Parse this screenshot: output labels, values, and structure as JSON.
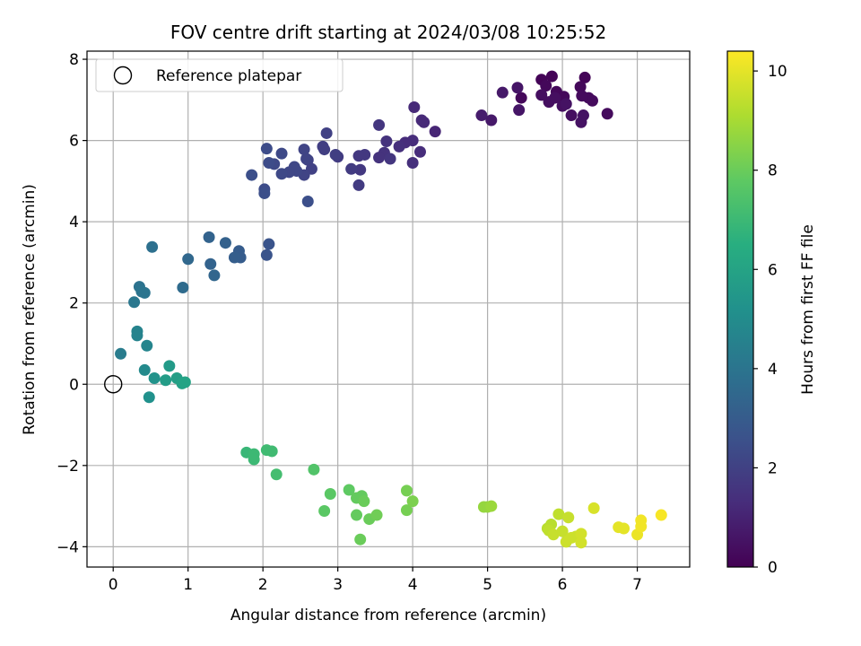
{
  "chart_data": {
    "type": "scatter",
    "title": "FOV centre drift starting at 2024/03/08 10:25:52",
    "xlabel": "Angular distance from reference (arcmin)",
    "ylabel": "Rotation from reference (arcmin)",
    "xlim": [
      -0.35,
      7.7
    ],
    "ylim": [
      -4.5,
      8.2
    ],
    "xticks": [
      0,
      1,
      2,
      3,
      4,
      5,
      6,
      7
    ],
    "yticks": [
      -4,
      -2,
      0,
      2,
      4,
      6,
      8
    ],
    "grid": true,
    "legend": {
      "placement": "top-left",
      "entries": [
        "Reference platepar"
      ]
    },
    "reference_point": {
      "x": 0,
      "y": 0
    },
    "colorbar": {
      "label": "Hours from first FF file",
      "range": [
        0,
        10.4
      ],
      "ticks": [
        0,
        2,
        4,
        6,
        8,
        10
      ],
      "colormap": "viridis"
    },
    "points": [
      {
        "x": 5.72,
        "y": 7.5,
        "h": 0.1
      },
      {
        "x": 5.86,
        "y": 7.58,
        "h": 0.1
      },
      {
        "x": 6.3,
        "y": 7.55,
        "h": 0.1
      },
      {
        "x": 5.45,
        "y": 7.05,
        "h": 0.2
      },
      {
        "x": 5.78,
        "y": 7.35,
        "h": 0.2
      },
      {
        "x": 5.92,
        "y": 7.2,
        "h": 0.2
      },
      {
        "x": 6.02,
        "y": 7.08,
        "h": 0.2
      },
      {
        "x": 6.24,
        "y": 7.32,
        "h": 0.2
      },
      {
        "x": 6.6,
        "y": 6.66,
        "h": 0.3
      },
      {
        "x": 6.35,
        "y": 7.05,
        "h": 0.3
      },
      {
        "x": 6.4,
        "y": 6.98,
        "h": 0.3
      },
      {
        "x": 6.26,
        "y": 7.1,
        "h": 0.3
      },
      {
        "x": 5.72,
        "y": 7.12,
        "h": 0.4
      },
      {
        "x": 5.82,
        "y": 6.95,
        "h": 0.4
      },
      {
        "x": 5.9,
        "y": 7.05,
        "h": 0.4
      },
      {
        "x": 6.0,
        "y": 6.85,
        "h": 0.4
      },
      {
        "x": 6.12,
        "y": 6.62,
        "h": 0.4
      },
      {
        "x": 6.25,
        "y": 6.45,
        "h": 0.5
      },
      {
        "x": 6.28,
        "y": 6.62,
        "h": 0.5
      },
      {
        "x": 6.05,
        "y": 6.9,
        "h": 0.5
      },
      {
        "x": 5.42,
        "y": 6.75,
        "h": 0.6
      },
      {
        "x": 5.4,
        "y": 7.3,
        "h": 0.6
      },
      {
        "x": 5.2,
        "y": 7.18,
        "h": 0.7
      },
      {
        "x": 5.05,
        "y": 6.5,
        "h": 0.7
      },
      {
        "x": 4.92,
        "y": 6.62,
        "h": 0.8
      },
      {
        "x": 4.3,
        "y": 6.22,
        "h": 1.1
      },
      {
        "x": 4.12,
        "y": 6.5,
        "h": 1.2
      },
      {
        "x": 4.15,
        "y": 6.45,
        "h": 1.2
      },
      {
        "x": 4.02,
        "y": 6.82,
        "h": 1.2
      },
      {
        "x": 4.0,
        "y": 6.0,
        "h": 1.3
      },
      {
        "x": 3.9,
        "y": 5.95,
        "h": 1.3
      },
      {
        "x": 4.1,
        "y": 5.72,
        "h": 1.3
      },
      {
        "x": 4.0,
        "y": 5.45,
        "h": 1.4
      },
      {
        "x": 3.82,
        "y": 5.85,
        "h": 1.4
      },
      {
        "x": 3.65,
        "y": 5.98,
        "h": 1.5
      },
      {
        "x": 3.62,
        "y": 5.7,
        "h": 1.5
      },
      {
        "x": 3.55,
        "y": 5.58,
        "h": 1.5
      },
      {
        "x": 3.7,
        "y": 5.55,
        "h": 1.6
      },
      {
        "x": 3.55,
        "y": 6.38,
        "h": 1.6
      },
      {
        "x": 3.36,
        "y": 5.65,
        "h": 1.7
      },
      {
        "x": 3.28,
        "y": 5.62,
        "h": 1.7
      },
      {
        "x": 3.3,
        "y": 5.28,
        "h": 1.7
      },
      {
        "x": 3.18,
        "y": 5.3,
        "h": 1.8
      },
      {
        "x": 3.28,
        "y": 4.9,
        "h": 1.8
      },
      {
        "x": 3.0,
        "y": 5.6,
        "h": 1.8
      },
      {
        "x": 2.97,
        "y": 5.65,
        "h": 1.9
      },
      {
        "x": 2.82,
        "y": 5.78,
        "h": 1.9
      },
      {
        "x": 2.8,
        "y": 5.85,
        "h": 1.9
      },
      {
        "x": 2.85,
        "y": 6.18,
        "h": 2.0
      },
      {
        "x": 2.6,
        "y": 5.52,
        "h": 2.0
      },
      {
        "x": 2.65,
        "y": 5.3,
        "h": 2.0
      },
      {
        "x": 2.55,
        "y": 5.78,
        "h": 2.1
      },
      {
        "x": 2.58,
        "y": 5.55,
        "h": 2.1
      },
      {
        "x": 2.55,
        "y": 5.15,
        "h": 2.1
      },
      {
        "x": 2.45,
        "y": 5.25,
        "h": 2.2
      },
      {
        "x": 2.42,
        "y": 5.35,
        "h": 2.2
      },
      {
        "x": 2.35,
        "y": 5.22,
        "h": 2.2
      },
      {
        "x": 2.25,
        "y": 5.68,
        "h": 2.3
      },
      {
        "x": 2.25,
        "y": 5.18,
        "h": 2.3
      },
      {
        "x": 2.15,
        "y": 5.42,
        "h": 2.3
      },
      {
        "x": 2.08,
        "y": 5.45,
        "h": 2.4
      },
      {
        "x": 2.05,
        "y": 5.8,
        "h": 2.4
      },
      {
        "x": 2.02,
        "y": 4.8,
        "h": 2.4
      },
      {
        "x": 2.02,
        "y": 4.7,
        "h": 2.5
      },
      {
        "x": 1.85,
        "y": 5.15,
        "h": 2.5
      },
      {
        "x": 2.6,
        "y": 4.5,
        "h": 2.5
      },
      {
        "x": 2.08,
        "y": 3.45,
        "h": 2.7
      },
      {
        "x": 2.05,
        "y": 3.18,
        "h": 2.7
      },
      {
        "x": 1.68,
        "y": 3.28,
        "h": 3.0
      },
      {
        "x": 1.7,
        "y": 3.12,
        "h": 3.0
      },
      {
        "x": 1.62,
        "y": 3.12,
        "h": 3.1
      },
      {
        "x": 1.5,
        "y": 3.48,
        "h": 3.2
      },
      {
        "x": 1.28,
        "y": 3.62,
        "h": 3.3
      },
      {
        "x": 1.3,
        "y": 2.96,
        "h": 3.3
      },
      {
        "x": 1.35,
        "y": 2.68,
        "h": 3.4
      },
      {
        "x": 1.0,
        "y": 3.08,
        "h": 3.5
      },
      {
        "x": 0.93,
        "y": 2.38,
        "h": 3.6
      },
      {
        "x": 0.52,
        "y": 3.38,
        "h": 3.8
      },
      {
        "x": 0.35,
        "y": 2.4,
        "h": 3.9
      },
      {
        "x": 0.42,
        "y": 2.25,
        "h": 4.0
      },
      {
        "x": 0.38,
        "y": 2.28,
        "h": 4.0
      },
      {
        "x": 0.28,
        "y": 2.02,
        "h": 4.1
      },
      {
        "x": 0.1,
        "y": 0.75,
        "h": 4.3
      },
      {
        "x": 0.32,
        "y": 1.3,
        "h": 4.6
      },
      {
        "x": 0.32,
        "y": 1.2,
        "h": 4.6
      },
      {
        "x": 0.45,
        "y": 0.95,
        "h": 4.7
      },
      {
        "x": 0.42,
        "y": 0.35,
        "h": 4.9
      },
      {
        "x": 0.48,
        "y": -0.32,
        "h": 5.2
      },
      {
        "x": 0.55,
        "y": 0.15,
        "h": 5.3
      },
      {
        "x": 0.75,
        "y": 0.45,
        "h": 5.6
      },
      {
        "x": 0.7,
        "y": 0.1,
        "h": 5.7
      },
      {
        "x": 0.85,
        "y": 0.15,
        "h": 5.8
      },
      {
        "x": 0.92,
        "y": 0.02,
        "h": 5.9
      },
      {
        "x": 0.96,
        "y": 0.05,
        "h": 6.0
      },
      {
        "x": 1.78,
        "y": -1.68,
        "h": 6.9
      },
      {
        "x": 1.88,
        "y": -1.72,
        "h": 7.0
      },
      {
        "x": 1.88,
        "y": -1.85,
        "h": 7.0
      },
      {
        "x": 2.05,
        "y": -1.62,
        "h": 7.1
      },
      {
        "x": 2.12,
        "y": -1.65,
        "h": 7.1
      },
      {
        "x": 2.18,
        "y": -2.22,
        "h": 7.2
      },
      {
        "x": 2.68,
        "y": -2.1,
        "h": 7.5
      },
      {
        "x": 2.82,
        "y": -3.12,
        "h": 7.7
      },
      {
        "x": 2.9,
        "y": -2.7,
        "h": 7.7
      },
      {
        "x": 3.15,
        "y": -2.6,
        "h": 7.8
      },
      {
        "x": 3.25,
        "y": -3.22,
        "h": 7.9
      },
      {
        "x": 3.25,
        "y": -2.8,
        "h": 7.9
      },
      {
        "x": 3.32,
        "y": -2.75,
        "h": 7.9
      },
      {
        "x": 3.35,
        "y": -2.88,
        "h": 8.0
      },
      {
        "x": 3.42,
        "y": -3.32,
        "h": 8.0
      },
      {
        "x": 3.3,
        "y": -3.82,
        "h": 8.0
      },
      {
        "x": 3.52,
        "y": -3.22,
        "h": 8.1
      },
      {
        "x": 3.92,
        "y": -3.1,
        "h": 8.2
      },
      {
        "x": 3.92,
        "y": -2.62,
        "h": 8.2
      },
      {
        "x": 4.0,
        "y": -2.88,
        "h": 8.3
      },
      {
        "x": 4.95,
        "y": -3.02,
        "h": 8.7
      },
      {
        "x": 5.0,
        "y": -3.02,
        "h": 8.7
      },
      {
        "x": 5.05,
        "y": -3.0,
        "h": 8.8
      },
      {
        "x": 5.8,
        "y": -3.55,
        "h": 9.3
      },
      {
        "x": 5.85,
        "y": -3.45,
        "h": 9.3
      },
      {
        "x": 5.95,
        "y": -3.2,
        "h": 9.4
      },
      {
        "x": 5.82,
        "y": -3.6,
        "h": 9.4
      },
      {
        "x": 5.88,
        "y": -3.7,
        "h": 9.5
      },
      {
        "x": 6.0,
        "y": -3.62,
        "h": 9.5
      },
      {
        "x": 6.08,
        "y": -3.28,
        "h": 9.5
      },
      {
        "x": 6.05,
        "y": -3.88,
        "h": 9.6
      },
      {
        "x": 6.12,
        "y": -3.78,
        "h": 9.6
      },
      {
        "x": 6.18,
        "y": -3.75,
        "h": 9.6
      },
      {
        "x": 6.25,
        "y": -3.68,
        "h": 9.7
      },
      {
        "x": 6.25,
        "y": -3.9,
        "h": 9.7
      },
      {
        "x": 6.42,
        "y": -3.05,
        "h": 9.8
      },
      {
        "x": 6.75,
        "y": -3.52,
        "h": 10.0
      },
      {
        "x": 6.82,
        "y": -3.55,
        "h": 10.0
      },
      {
        "x": 7.0,
        "y": -3.7,
        "h": 10.1
      },
      {
        "x": 7.05,
        "y": -3.5,
        "h": 10.2
      },
      {
        "x": 7.05,
        "y": -3.35,
        "h": 10.2
      },
      {
        "x": 7.32,
        "y": -3.22,
        "h": 10.3
      }
    ]
  }
}
